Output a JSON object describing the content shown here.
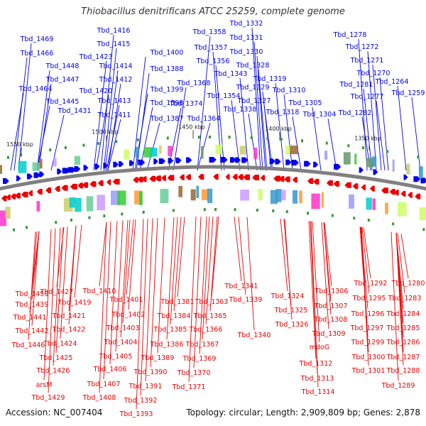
{
  "title": "Thiobacillus denitrificans ATCC 25259, complete genome",
  "footer": {
    "accession": "Accession: NC_007404",
    "stats": "Topology: circular; Length: 2,909,809 bp; Genes: 2,878"
  },
  "colors": {
    "forward": "#0000ee",
    "reverse": "#ee0000",
    "backbone": "#808080"
  },
  "ticks": [
    {
      "label": "1550 kbp"
    },
    {
      "label": "1500 kbp"
    },
    {
      "label": "1450 kbp"
    },
    {
      "label": "1400 kbp"
    },
    {
      "label": "1350 kbp"
    }
  ],
  "top_labels": [
    "Tbd_1469",
    "Tbd_1466",
    "Tbd_1448",
    "Tbd_1447",
    "Tbd_1464",
    "Tbd_1445",
    "Tbd_1431",
    "Tbd_1416",
    "Tbd_1415",
    "Tbd_1423",
    "Tbd_1414",
    "Tbd_1412",
    "Tbd_1420",
    "Tbd_1413",
    "Tbd_1411",
    "Tbd_1400",
    "Tbd_1388",
    "Tbd_1399",
    "Tbd_1398",
    "Tbd_1387",
    "Tbd_1368",
    "Tbd_1374",
    "Tbd_1364",
    "Tbd_1358",
    "Tbd_1357",
    "Tbd_1356",
    "Tbd_1354",
    "Tbd_1332",
    "Tbd_1331",
    "Tbd_1330",
    "Tbd_1328",
    "Tbd_1343",
    "Tbd_1329",
    "Tbd_1338",
    "Tbd_1327",
    "Tbd_1319",
    "Tbd_1310",
    "Tbd_1318",
    "Tbd_1305",
    "Tbd_1304",
    "Tbd_1278",
    "Tbd_1272",
    "Tbd_1271",
    "Tbd_1270",
    "Tbd_1281",
    "Tbd_1264",
    "Tbd_1277",
    "Tbd_1259",
    "Tbd_1282"
  ],
  "bottom_labels": [
    "Tbd_1450",
    "Tbd_1439",
    "Tbd_1441",
    "Tbd_1442",
    "Tbd_1446",
    "Tbd_1427",
    "Tbd_1419",
    "Tbd_1421",
    "Tbd_1422",
    "Tbd_1424",
    "Tbd_1425",
    "Tbd_1426",
    "arsM",
    "Tbd_1429",
    "Tbd_1410",
    "Tbd_1401",
    "Tbd_1402",
    "Tbd_1403",
    "Tbd_1404",
    "Tbd_1405",
    "Tbd_1406",
    "Tbd_1407",
    "Tbd_1408",
    "Tbd_1381",
    "Tbd_1384",
    "Tbd_1385",
    "Tbd_1386",
    "Tbd_1389",
    "Tbd_1390",
    "Tbd_1391",
    "Tbd_1392",
    "Tbd_1393",
    "Tbd_1363",
    "Tbd_1365",
    "Tbd_1366",
    "Tbd_1367",
    "Tbd_1369",
    "Tbd_1370",
    "Tbd_1371",
    "Tbd_1341",
    "Tbd_1339",
    "Tbd_1340",
    "Tbd_1324",
    "Tbd_1325",
    "Tbd_1326",
    "Tbd_1306",
    "Tbd_1307",
    "Tbd_1308",
    "Tbd_1309",
    "mdoG",
    "Tbd_1312",
    "Tbd_1313",
    "Tbd_1314",
    "Tbd_1292",
    "Tbd_1280",
    "Tbd_1295",
    "Tbd_1283",
    "Tbd_1296",
    "Tbd_1284",
    "Tbd_1297",
    "Tbd_1285",
    "Tbd_1299",
    "Tbd_1286",
    "Tbd_1300",
    "Tbd_1287",
    "Tbd_1301",
    "Tbd_1288",
    "Tbd_1289"
  ]
}
